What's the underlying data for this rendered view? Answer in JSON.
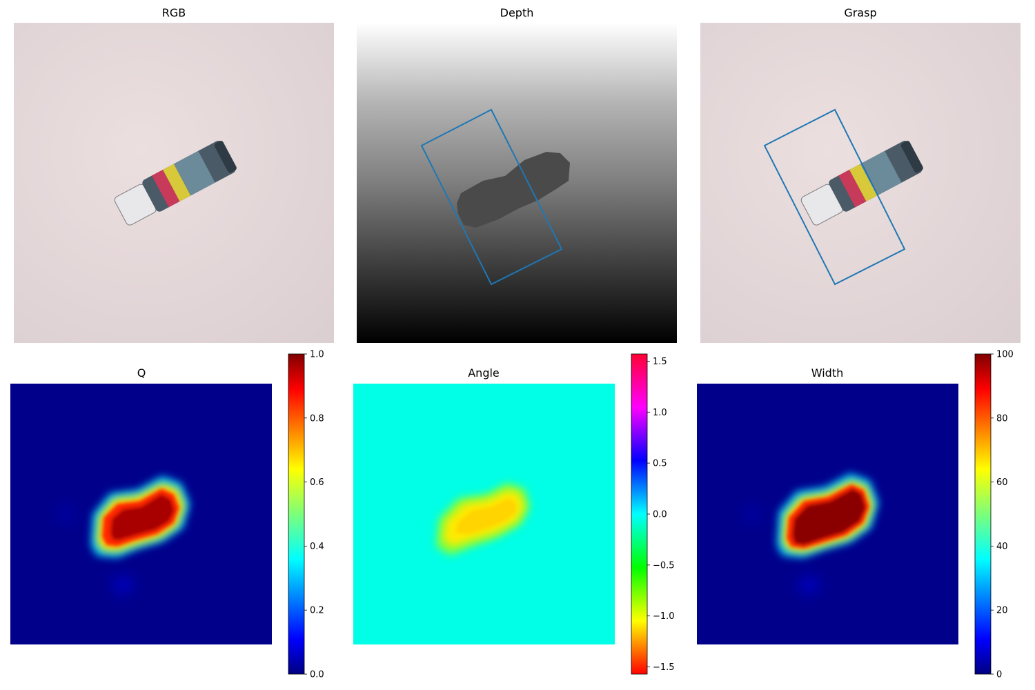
{
  "figure": {
    "background": "#ffffff",
    "grasp_color": "#1f77b4"
  },
  "panels": {
    "rgb": {
      "title": "RGB"
    },
    "depth": {
      "title": "Depth"
    },
    "grasp": {
      "title": "Grasp"
    },
    "q": {
      "title": "Q",
      "colormap": "jet"
    },
    "angle": {
      "title": "Angle",
      "colormap": "hsv"
    },
    "width": {
      "title": "Width",
      "colormap": "jet"
    }
  },
  "chart_data": [
    {
      "type": "heatmap",
      "title": "Q",
      "colormap": "jet",
      "vmin": 0.0,
      "vmax": 1.0,
      "colorbar_ticks": [
        "0.0",
        "0.2",
        "0.4",
        "0.6",
        "0.8",
        "1.0"
      ],
      "background_value": 0.05,
      "peak_value": 1.0
    },
    {
      "type": "heatmap",
      "title": "Angle",
      "colormap": "hsv",
      "vmin": -1.5708,
      "vmax": 1.5708,
      "colorbar_ticks": [
        "−1.5",
        "−1.0",
        "−0.5",
        "0.0",
        "0.5",
        "1.0",
        "1.5"
      ],
      "background_value": 0.0,
      "peak_value": -1.1
    },
    {
      "type": "heatmap",
      "title": "Width",
      "colormap": "jet",
      "vmin": 0,
      "vmax": 100,
      "colorbar_ticks": [
        "0",
        "20",
        "40",
        "60",
        "80",
        "100"
      ],
      "background_value": 5,
      "peak_value": 100
    }
  ]
}
